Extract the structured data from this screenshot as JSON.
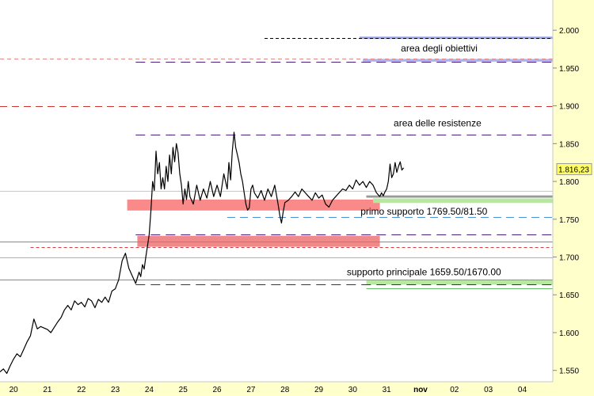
{
  "chart_data": {
    "type": "line",
    "y_axis": {
      "ticks": [
        1.55,
        1.6,
        1.65,
        1.7,
        1.75,
        1.8,
        1.85,
        1.9,
        1.95,
        2.0
      ],
      "tick_labels": [
        "1.550",
        "1.600",
        "1.650",
        "1.700",
        "1.750",
        "1.800",
        "1.850",
        "1.900",
        "1.950",
        "2.000"
      ],
      "ylim": [
        1.535,
        2.04
      ],
      "position": "right"
    },
    "x_axis": {
      "tick_labels": [
        "20",
        "21",
        "22",
        "23",
        "24",
        "25",
        "26",
        "27",
        "28",
        "29",
        "30",
        "31",
        "nov",
        "02",
        "03",
        "04"
      ],
      "bold_label": "nov",
      "xlim": [
        19.6,
        35.9
      ]
    },
    "last_price": {
      "value": 1816.23,
      "label": "1.816,23",
      "color": "#ffff66"
    },
    "series": [
      {
        "color": "#000000",
        "x": [
          19.6,
          19.7,
          19.8,
          19.9,
          20.0,
          20.1,
          20.2,
          20.3,
          20.4,
          20.5,
          20.6,
          20.7,
          20.8,
          20.9,
          21.0,
          21.1,
          21.2,
          21.3,
          21.4,
          21.5,
          21.6,
          21.7,
          21.8,
          21.9,
          22.0,
          22.1,
          22.2,
          22.3,
          22.4,
          22.5,
          22.6,
          22.7,
          22.8,
          22.9,
          23.0,
          23.1,
          23.2,
          23.3,
          23.4,
          23.5,
          23.6,
          23.7,
          23.75,
          23.8,
          23.85,
          23.9,
          23.95,
          24.0,
          24.05,
          24.1,
          24.15,
          24.2,
          24.25,
          24.3,
          24.35,
          24.4,
          24.45,
          24.5,
          24.55,
          24.6,
          24.65,
          24.7,
          24.75,
          24.8,
          24.85,
          24.9,
          24.95,
          25.0,
          25.05,
          25.1,
          25.15,
          25.2,
          25.3,
          25.4,
          25.5,
          25.6,
          25.7,
          25.8,
          25.9,
          26.0,
          26.1,
          26.2,
          26.3,
          26.35,
          26.4,
          26.45,
          26.5,
          26.55,
          26.6,
          26.65,
          26.7,
          26.75,
          26.8,
          26.85,
          26.9,
          26.95,
          27.0,
          27.05,
          27.1,
          27.2,
          27.3,
          27.4,
          27.5,
          27.6,
          27.7,
          27.8,
          27.85,
          27.9,
          27.95,
          28.0,
          28.1,
          28.2,
          28.3,
          28.4,
          28.5,
          28.6,
          28.7,
          28.8,
          28.9,
          29.0,
          29.1,
          29.2,
          29.3,
          29.4,
          29.5,
          29.6,
          29.7,
          29.8,
          29.9,
          30.0,
          30.1,
          30.2,
          30.3,
          30.4,
          30.5,
          30.6,
          30.7,
          30.8
        ],
        "y": [
          1.548,
          1.552,
          1.546,
          1.556,
          1.565,
          1.572,
          1.568,
          1.578,
          1.588,
          1.596,
          1.618,
          1.605,
          1.608,
          1.606,
          1.604,
          1.6,
          1.607,
          1.614,
          1.62,
          1.63,
          1.636,
          1.63,
          1.642,
          1.637,
          1.64,
          1.634,
          1.645,
          1.642,
          1.633,
          1.644,
          1.64,
          1.647,
          1.64,
          1.655,
          1.658,
          1.67,
          1.695,
          1.705,
          1.685,
          1.675,
          1.665,
          1.68,
          1.674,
          1.69,
          1.684,
          1.7,
          1.715,
          1.73,
          1.762,
          1.8,
          1.788,
          1.84,
          1.81,
          1.825,
          1.79,
          1.805,
          1.79,
          1.82,
          1.8,
          1.835,
          1.81,
          1.845,
          1.826,
          1.85,
          1.838,
          1.81,
          1.795,
          1.77,
          1.79,
          1.776,
          1.8,
          1.78,
          1.77,
          1.795,
          1.775,
          1.79,
          1.778,
          1.8,
          1.78,
          1.795,
          1.78,
          1.81,
          1.79,
          1.825,
          1.802,
          1.84,
          1.865,
          1.845,
          1.835,
          1.825,
          1.81,
          1.8,
          1.785,
          1.77,
          1.762,
          1.765,
          1.79,
          1.795,
          1.785,
          1.778,
          1.788,
          1.775,
          1.79,
          1.78,
          1.795,
          1.77,
          1.755,
          1.745,
          1.76,
          1.772,
          1.775,
          1.78,
          1.786,
          1.78,
          1.79,
          1.785,
          1.78,
          1.775,
          1.785,
          1.778,
          1.782,
          1.77,
          1.766,
          1.775,
          1.78,
          1.785,
          1.79,
          1.788,
          1.795,
          1.79,
          1.802,
          1.795,
          1.8,
          1.792,
          1.8,
          1.795,
          1.785,
          1.78
        ]
      },
      {
        "color": "#000000",
        "x": [
          30.8,
          30.85,
          30.9,
          30.95,
          31.0,
          31.05,
          31.1,
          31.15,
          31.2,
          31.25,
          31.3,
          31.35,
          31.4,
          31.45,
          31.5
        ],
        "y": [
          1.78,
          1.785,
          1.781,
          1.786,
          1.79,
          1.8,
          1.823,
          1.805,
          1.81,
          1.825,
          1.812,
          1.82,
          1.826,
          1.815,
          1.818
        ]
      }
    ],
    "bands": [
      {
        "y1": 1.7615,
        "y2": 1.776,
        "x1": 23.35,
        "x2": 30.8,
        "color": "#fa8a8a"
      },
      {
        "y1": 1.7135,
        "y2": 1.728,
        "x1": 23.65,
        "x2": 30.8,
        "color": "#f08a8a"
      },
      {
        "y1": 1.9885,
        "y2": 1.9915,
        "x1": 30.2,
        "x2": 35.9,
        "color": "#9aa0ee"
      },
      {
        "y1": 1.9585,
        "y2": 1.962,
        "x1": 30.3,
        "x2": 35.9,
        "color": "#aab0f0"
      },
      {
        "y1": 1.7715,
        "y2": 1.7775,
        "x1": 30.6,
        "x2": 35.9,
        "color": "#b6e8a0"
      },
      {
        "y1": 1.6635,
        "y2": 1.669,
        "x1": 30.4,
        "x2": 35.9,
        "color": "#b6e8a0"
      },
      {
        "y1": 1.7785,
        "y2": 1.7815,
        "x1": 30.4,
        "x2": 35.9,
        "color": "#9a9a9a"
      }
    ],
    "hlines": [
      {
        "y": 1.99,
        "x1": 27.4,
        "x2": 35.9,
        "color": "#000000",
        "dash": "4,3"
      },
      {
        "y": 1.962,
        "x1": 19.6,
        "x2": 35.9,
        "color": "#e08a8a",
        "dash": "5,4"
      },
      {
        "y": 1.958,
        "x1": 23.6,
        "x2": 35.9,
        "color": "#4a1e7a",
        "dash": "12,7"
      },
      {
        "y": 1.9,
        "x1": 19.6,
        "x2": 35.9,
        "color": "#cc3333",
        "dash": "9,6"
      },
      {
        "y": 1.862,
        "x1": 23.6,
        "x2": 35.9,
        "color": "#4a1e7a",
        "dash": "12,7"
      },
      {
        "y": 1.787,
        "x1": 19.6,
        "x2": 35.9,
        "color": "#c8c8c8",
        "dash": ""
      },
      {
        "y": 1.753,
        "x1": 26.3,
        "x2": 35.9,
        "color": "#4a8ed6",
        "dash": "10,6"
      },
      {
        "y": 1.73,
        "x1": 23.6,
        "x2": 35.9,
        "color": "#4a1e7a",
        "dash": "12,7"
      },
      {
        "y": 1.72,
        "x1": 19.6,
        "x2": 35.9,
        "color": "#8a8a8a",
        "dash": ""
      },
      {
        "y": 1.713,
        "x1": 20.5,
        "x2": 35.9,
        "color": "#cc4444",
        "dash": "4,3"
      },
      {
        "y": 1.7,
        "x1": 19.6,
        "x2": 35.9,
        "color": "#b0b0b0",
        "dash": ""
      },
      {
        "y": 1.67,
        "x1": 19.6,
        "x2": 35.9,
        "color": "#8a8a8a",
        "dash": ""
      },
      {
        "y": 1.6635,
        "x1": 23.6,
        "x2": 35.9,
        "color": "#4a1e7a",
        "dash": "12,7"
      },
      {
        "y": 1.659,
        "x1": 30.4,
        "x2": 35.9,
        "color": "#66bb66",
        "dash": ""
      }
    ],
    "annotations": [
      {
        "text": "area degli obiettivi",
        "x": 32.55,
        "y": 1.975
      },
      {
        "text": "area delle resistenze",
        "x": 32.5,
        "y": 1.876
      },
      {
        "text": "primo supporto 1769.50/81.50",
        "x": 32.1,
        "y": 1.7595
      },
      {
        "text": "supporto principale 1659.50/1670.00",
        "x": 32.1,
        "y": 1.6795
      }
    ]
  }
}
